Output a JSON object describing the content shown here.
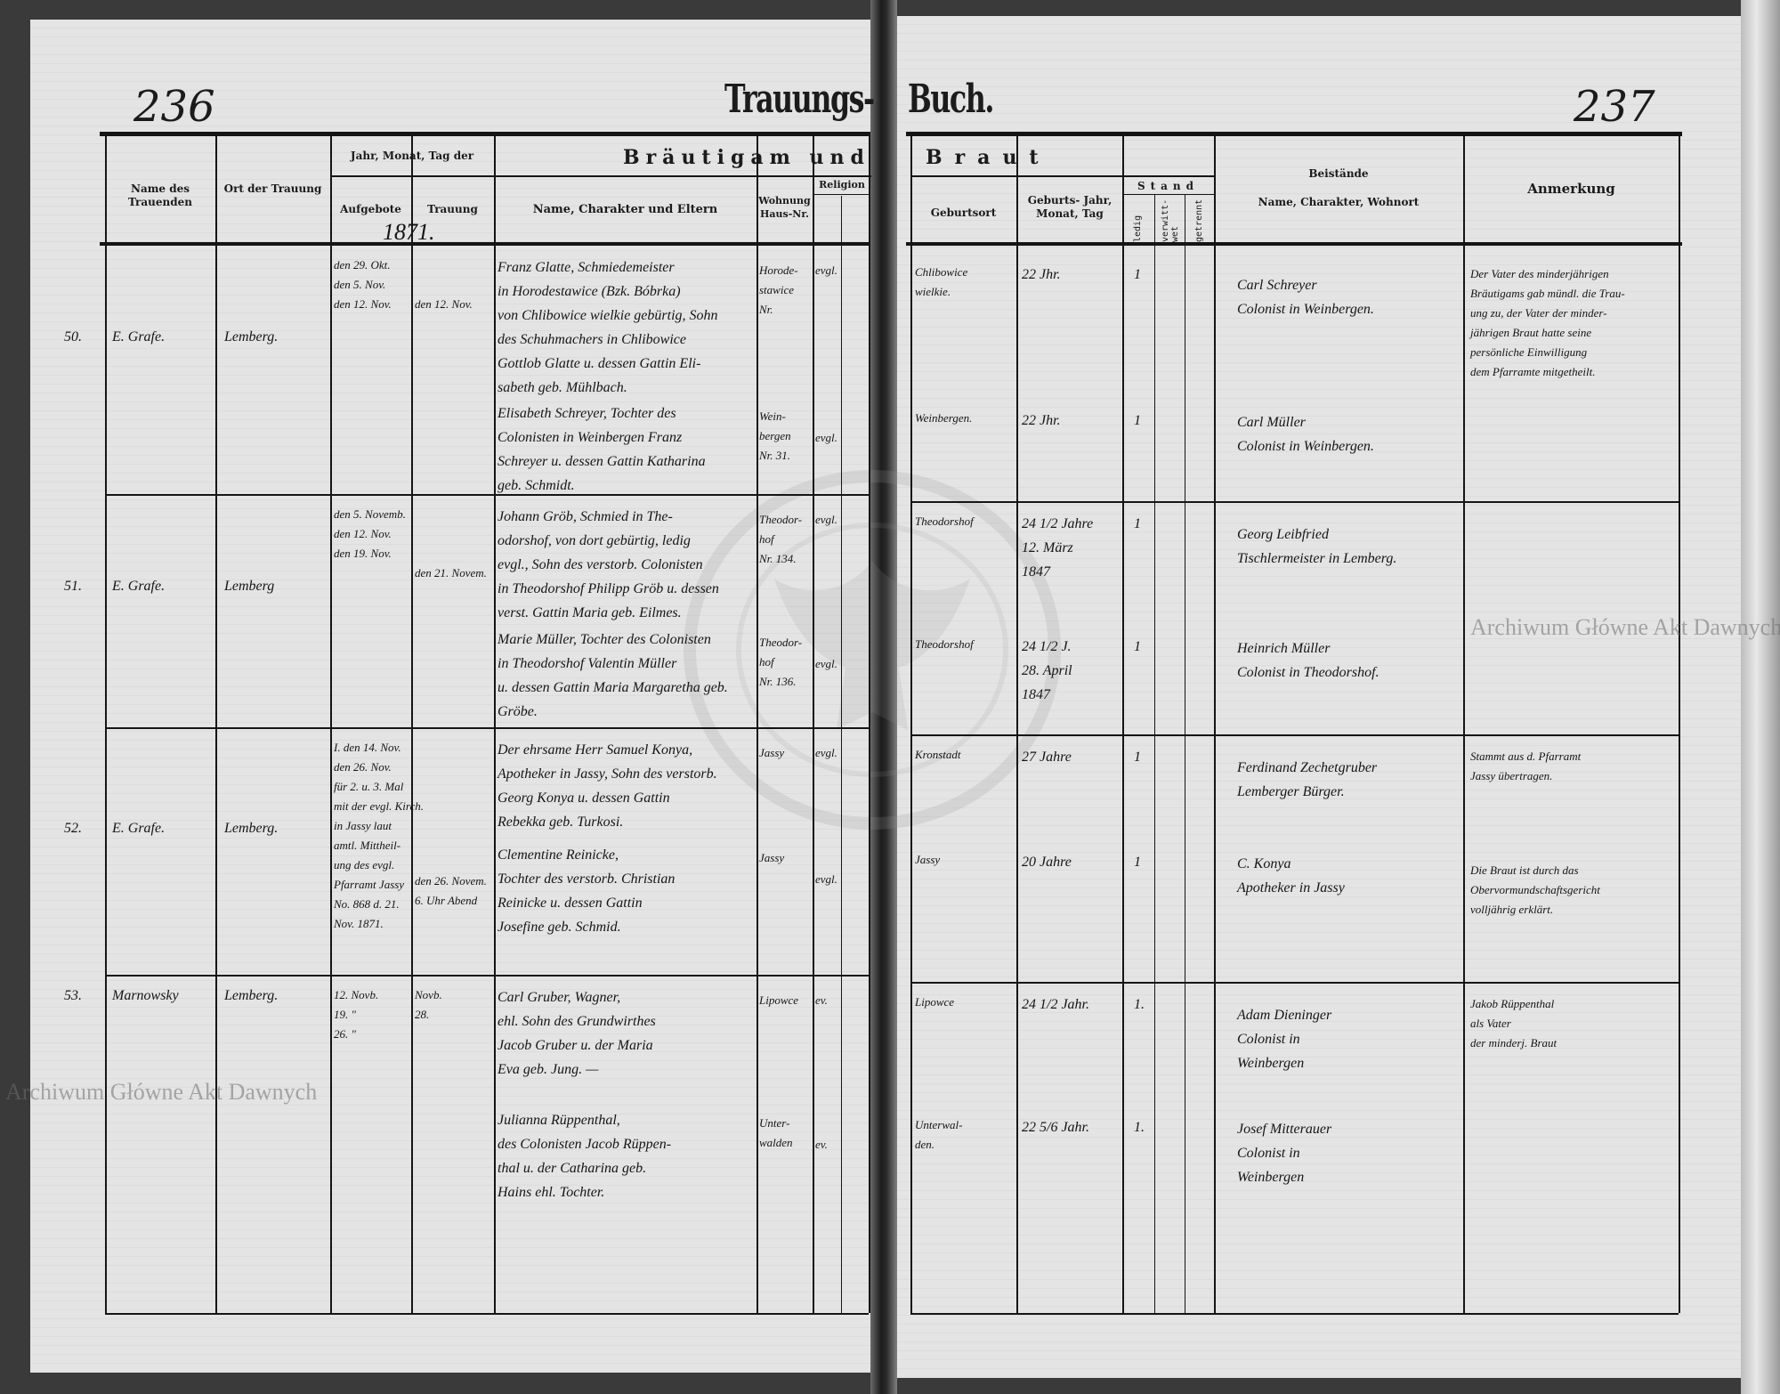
{
  "header": {
    "page_left": "236",
    "page_right": "237",
    "title_left": "Trauungs-",
    "title_right": "Buch.",
    "year": "1871."
  },
  "columns": {
    "name_trauenden": "Name des Trauenden",
    "ort_trauung": "Ort der Trauung",
    "datum_group": "Jahr, Monat, Tag der",
    "aufgebote": "Aufgebote",
    "trauung": "Trauung",
    "braeutigam_und": "Bräutigam und",
    "braut": "Braut",
    "name_charakter_eltern": "Name, Charakter und Eltern",
    "wohnung": "Wohnung Haus-Nr.",
    "religion": "Religion",
    "geburtsort": "Geburtsort",
    "geburts_datum": "Geburts- Jahr, Monat, Tag",
    "stand": "Stand",
    "ledig": "ledig",
    "verwitwet": "verwitt- wet",
    "getrennt": "getrennt",
    "beistaende": "Beistände",
    "beistaende_sub": "Name, Charakter, Wohnort",
    "anmerkung": "Anmerkung"
  },
  "rows": [
    {
      "number": "50.",
      "trauender": "E. Grafe.",
      "ort": "Lemberg.",
      "aufgebote": [
        "den 29. Okt.",
        "den 5. Nov.",
        "den 12. Nov."
      ],
      "trauung": [
        "den 12. Nov."
      ],
      "groom": {
        "text": [
          "Franz Glatte, Schmiedemeister",
          "in Horodestawice (Bzk. Bóbrka)",
          "von Chlibowice wielkie gebürtig, Sohn",
          "des Schuhmachers in Chlibowice",
          "Gottlob Glatte u. dessen Gattin Eli-",
          "sabeth geb. Mühlbach."
        ],
        "wohnung": [
          "Horode-",
          "stawice",
          "Nr."
        ],
        "religion": "evgl.",
        "geburtsort": [
          "Chlibowice",
          "wielkie."
        ],
        "alter": [
          "22 Jhr."
        ],
        "ledig": "1"
      },
      "bride": {
        "text": [
          "Elisabeth Schreyer, Tochter des",
          "Colonisten in Weinbergen Franz",
          "Schreyer u. dessen Gattin Katharina",
          "geb. Schmidt."
        ],
        "wohnung": [
          "Wein-",
          "bergen",
          "Nr. 31."
        ],
        "religion": "evgl.",
        "geburtsort": [
          "Weinbergen."
        ],
        "alter": [
          "22 Jhr."
        ],
        "ledig": "1"
      },
      "beistaende": [
        [
          "Carl Schreyer",
          "Colonist in Weinbergen."
        ],
        [
          "Carl Müller",
          "Colonist in Weinbergen."
        ]
      ],
      "anmerkung": [
        [
          "Der Vater des minderjährigen",
          "Bräutigams gab mündl. die Trau-",
          "ung zu, der Vater der minder-",
          "jährigen Braut hatte seine",
          "persönliche Einwilligung",
          "dem Pfarramte mitgetheilt."
        ]
      ]
    },
    {
      "number": "51.",
      "trauender": "E. Grafe.",
      "ort": "Lemberg",
      "aufgebote": [
        "den 5. Novemb.",
        "den 12. Nov.",
        "den 19. Nov."
      ],
      "trauung": [
        "den 21. Novem."
      ],
      "groom": {
        "text": [
          "Johann Gröb, Schmied in The-",
          "odorshof, von dort gebürtig, ledig",
          "evgl., Sohn des verstorb. Colonisten",
          "in Theodorshof Philipp Gröb u. dessen",
          "verst. Gattin Maria geb. Eilmes."
        ],
        "wohnung": [
          "Theodor-",
          "hof",
          "Nr. 134."
        ],
        "religion": "evgl.",
        "geburtsort": [
          "Theodorshof"
        ],
        "alter": [
          "24 1/2 Jahre",
          "12. März",
          "1847"
        ],
        "ledig": "1"
      },
      "bride": {
        "text": [
          "Marie Müller, Tochter des Colonisten",
          "in Theodorshof Valentin Müller",
          "u. dessen Gattin Maria Margaretha geb.",
          "Gröbe."
        ],
        "wohnung": [
          "Theodor-",
          "hof",
          "Nr. 136."
        ],
        "religion": "evgl.",
        "geburtsort": [
          "Theodorshof"
        ],
        "alter": [
          "24 1/2 J.",
          "28. April",
          "1847"
        ],
        "ledig": "1"
      },
      "beistaende": [
        [
          "Georg Leibfried",
          "Tischlermeister in Lemberg."
        ],
        [
          "Heinrich Müller",
          "Colonist in Theodorshof."
        ]
      ],
      "anmerkung": []
    },
    {
      "number": "52.",
      "trauender": "E. Grafe.",
      "ort": "Lemberg.",
      "aufgebote": [
        "I. den 14. Nov.",
        "den 26. Nov.",
        "für 2. u. 3. Mal",
        "mit der evgl. Kirch.",
        "in Jassy laut",
        "amtl. Mittheil-",
        "ung des evgl.",
        "Pfarramt Jassy",
        "No. 868 d. 21.",
        "Nov. 1871."
      ],
      "trauung": [
        "den 26. Novem.",
        "6. Uhr Abend"
      ],
      "groom": {
        "text": [
          "Der ehrsame Herr Samuel Konya,",
          "Apotheker in Jassy, Sohn des verstorb.",
          "Georg Konya u. dessen Gattin",
          "Rebekka geb. Turkosi."
        ],
        "wohnung": [
          "Jassy"
        ],
        "religion": "evgl.",
        "geburtsort": [
          "Kronstadt"
        ],
        "alter": [
          "27 Jahre"
        ],
        "ledig": "1"
      },
      "bride": {
        "text": [
          "Clementine Reinicke,",
          "Tochter des verstorb. Christian",
          "Reinicke u. dessen Gattin",
          "Josefine geb. Schmid."
        ],
        "wohnung": [
          "Jassy"
        ],
        "religion": "evgl.",
        "geburtsort": [
          "Jassy"
        ],
        "alter": [
          "20 Jahre"
        ],
        "ledig": "1"
      },
      "beistaende": [
        [
          "Ferdinand Zechetgruber",
          "Lemberger Bürger."
        ],
        [
          "C. Konya",
          "Apotheker in Jassy"
        ]
      ],
      "anmerkung": [
        [
          "Stammt aus d. Pfarramt",
          "Jassy übertragen."
        ],
        [
          "Die Braut ist durch das",
          "Obervormundschaftsgericht",
          "volljährig erklärt."
        ]
      ]
    },
    {
      "number": "53.",
      "trauender": "Marnowsky",
      "ort": "Lemberg.",
      "aufgebote": [
        "12. Novb.",
        "19. \"",
        "26. \""
      ],
      "trauung": [
        "Novb.",
        "28."
      ],
      "groom": {
        "text": [
          "Carl Gruber, Wagner,",
          "ehl. Sohn des Grundwirthes",
          "Jacob Gruber u. der Maria",
          "Eva geb. Jung. —"
        ],
        "wohnung": [
          "Lipowce"
        ],
        "religion": "ev.",
        "geburtsort": [
          "Lipowce"
        ],
        "alter": [
          "24 1/2 Jahr."
        ],
        "ledig": "1."
      },
      "bride": {
        "text": [
          "Julianna Rüppenthal,",
          "des Colonisten Jacob Rüppen-",
          "thal u. der Catharina geb.",
          "Hains ehl. Tochter."
        ],
        "wohnung": [
          "Unter-",
          "walden"
        ],
        "religion": "ev.",
        "geburtsort": [
          "Unterwal-",
          "den."
        ],
        "alter": [
          "22 5/6 Jahr."
        ],
        "ledig": "1."
      },
      "beistaende": [
        [
          "Adam Dieninger",
          "Colonist in",
          "Weinbergen"
        ],
        [
          "Josef Mitterauer",
          "Colonist in",
          "Weinbergen"
        ]
      ],
      "anmerkung": [
        [
          "Jakob Rüppenthal",
          "als Vater",
          "der minderj. Braut"
        ]
      ]
    }
  ],
  "watermark": {
    "text": "Archiwum Główne Akt Dawnych",
    "seal_text": "ARCHIWUM GŁÓWNE AKT DAWNYCH"
  }
}
